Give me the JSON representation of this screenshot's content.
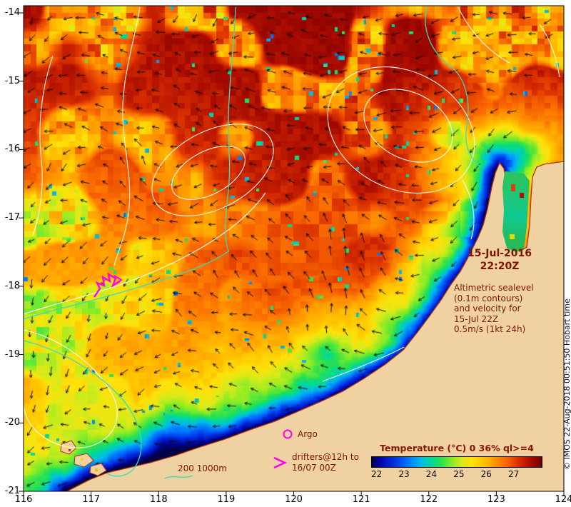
{
  "map": {
    "datetime": {
      "date": "15-Jul-2016",
      "time": "22:20Z"
    },
    "info_lines": [
      "Altimetric sealevel",
      "(0.1m contours)",
      "and velocity for",
      "15-Jul 22Z",
      "0.5m/s (1kt 24h)"
    ],
    "legend": {
      "argo_label": "Argo",
      "drifters_line1": "drifters@12h to",
      "drifters_line2": "16/07 00Z",
      "depth_label": "200 1000m"
    },
    "copyright": "© IMOS 22-Aug-2018 00:51:50 Hobart time"
  },
  "colorbar": {
    "title": "Temperature (°C) 0 36% ql>=4",
    "tick_labels": [
      "22",
      "23",
      "24",
      "25",
      "26",
      "27"
    ],
    "tick_values": [
      22,
      23,
      24,
      25,
      26,
      27
    ],
    "range": [
      21.8,
      28.0
    ]
  },
  "axes": {
    "x": {
      "labels": [
        "116",
        "117",
        "118",
        "119",
        "120",
        "121",
        "122",
        "123",
        "124"
      ],
      "label_values": [
        116,
        117,
        118,
        119,
        120,
        121,
        122,
        123,
        124
      ],
      "range": [
        116,
        124
      ]
    },
    "y": {
      "labels": [
        "-14",
        "-15",
        "-16",
        "-17",
        "-18",
        "-19",
        "-20",
        "-21"
      ],
      "label_values": [
        -14,
        -15,
        -16,
        -17,
        -18,
        -19,
        -20,
        -21
      ]
    }
  },
  "colors": {
    "land": "#f0d2a2",
    "coastline": "#b03000",
    "annotation_text": "#7a1500",
    "contour_white": "#ffffff",
    "bathy_cyan": "#38dcba",
    "drifter_magenta": "#ff00ee",
    "arrow_black": "#000000"
  }
}
